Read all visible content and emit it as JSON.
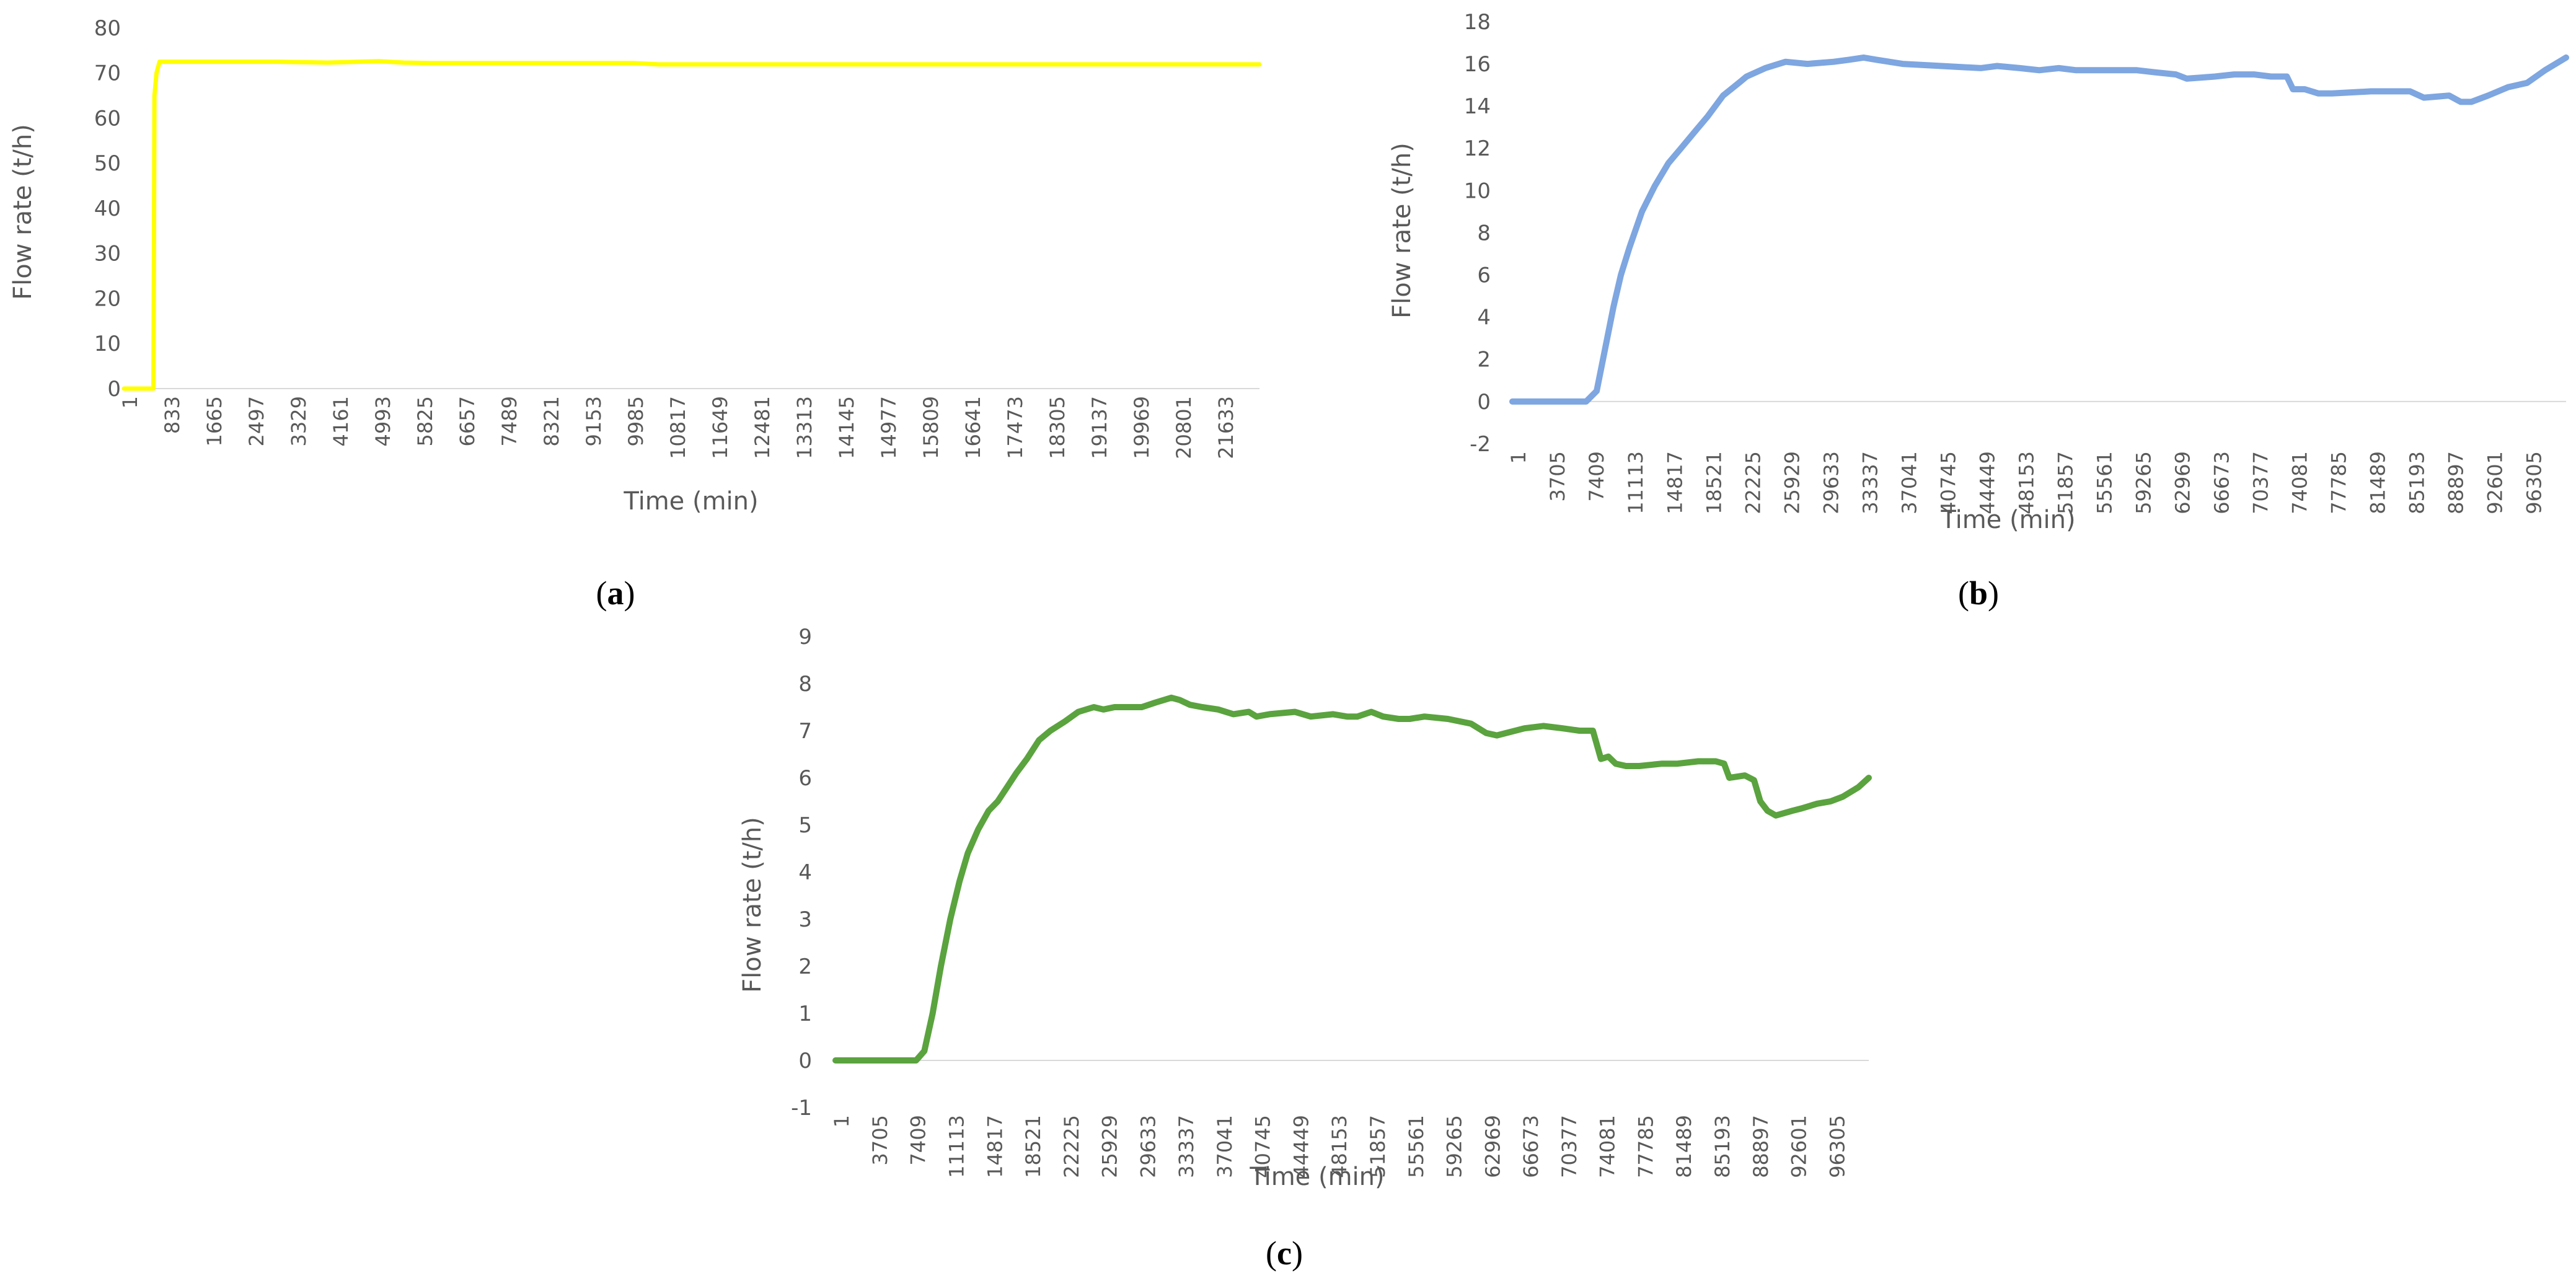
{
  "chart_data": [
    {
      "panel": "a",
      "panel_label_open": "(",
      "panel_label_letter": "a",
      "panel_label_close": ")",
      "type": "line",
      "xlabel": "Time (min)",
      "ylabel": "Flow rate (t/h)",
      "ylim": [
        0,
        80
      ],
      "yticks": [
        0,
        10,
        20,
        30,
        40,
        50,
        60,
        70,
        80
      ],
      "xlim": [
        1,
        22300
      ],
      "x_tick_labels": [
        "1",
        "833",
        "1665",
        "2497",
        "3329",
        "4161",
        "4993",
        "5825",
        "6657",
        "7489",
        "8321",
        "9153",
        "9985",
        "10817",
        "11649",
        "12481",
        "13313",
        "14145",
        "14977",
        "15809",
        "16641",
        "17473",
        "18305",
        "19137",
        "19969",
        "20801",
        "21633"
      ],
      "grid": false,
      "legend": "none",
      "color": "#FFFF00",
      "series": [
        {
          "x": [
            1,
            500,
            580,
            600,
            640,
            700,
            1000,
            2000,
            3000,
            4000,
            5000,
            5500,
            6000,
            8000,
            10000,
            10500,
            12000,
            15000,
            18000,
            21000,
            22300
          ],
          "y": [
            0,
            0,
            0,
            65,
            70,
            72.5,
            72.5,
            72.5,
            72.5,
            72.3,
            72.6,
            72.3,
            72.2,
            72.2,
            72.2,
            71.9,
            71.9,
            71.9,
            71.9,
            71.9,
            71.9
          ]
        }
      ]
    },
    {
      "panel": "b",
      "panel_label_open": "(",
      "panel_label_letter": "b",
      "panel_label_close": ")",
      "type": "line",
      "xlabel": "Time (min)",
      "ylabel": "Flow rate (t/h)",
      "ylim": [
        -2,
        18
      ],
      "yticks": [
        -2,
        0,
        2,
        4,
        6,
        8,
        10,
        12,
        14,
        16,
        18
      ],
      "xlim": [
        1,
        100000
      ],
      "x_tick_labels": [
        "1",
        "3705",
        "7409",
        "11113",
        "14817",
        "18521",
        "22225",
        "25929",
        "29633",
        "33337",
        "37041",
        "40745",
        "44449",
        "48153",
        "51857",
        "55561",
        "59265",
        "62969",
        "66673",
        "70377",
        "74081",
        "77785",
        "81489",
        "85193",
        "88897",
        "92601",
        "96305"
      ],
      "grid": false,
      "legend": "none",
      "color": "#7EA6E0",
      "series": [
        {
          "x": [
            1,
            1800,
            3500,
            7000,
            8000,
            8800,
            9600,
            10300,
            11113,
            12300,
            13500,
            14817,
            16000,
            17500,
            18521,
            20000,
            21500,
            22225,
            24000,
            25929,
            28000,
            30500,
            32000,
            33337,
            34500,
            37041,
            40745,
            44449,
            46000,
            48153,
            50000,
            51857,
            53500,
            55561,
            59265,
            61000,
            62969,
            64000,
            66673,
            68500,
            70377,
            72000,
            73500,
            74081,
            75200,
            76500,
            77785,
            81489,
            85193,
            86500,
            88897,
            90000,
            91000,
            92601,
            94500,
            96305,
            98000,
            100000
          ],
          "y": [
            0,
            0,
            0,
            0,
            0.5,
            2.5,
            4.5,
            6.0,
            7.3,
            9.0,
            10.2,
            11.3,
            12.0,
            12.9,
            13.5,
            14.5,
            15.1,
            15.4,
            15.8,
            16.1,
            16.0,
            16.1,
            16.2,
            16.3,
            16.2,
            16.0,
            15.9,
            15.8,
            15.9,
            15.8,
            15.7,
            15.8,
            15.7,
            15.7,
            15.7,
            15.6,
            15.5,
            15.3,
            15.4,
            15.5,
            15.5,
            15.4,
            15.4,
            14.8,
            14.8,
            14.6,
            14.6,
            14.7,
            14.7,
            14.4,
            14.5,
            14.2,
            14.2,
            14.5,
            14.9,
            15.1,
            15.7,
            16.3
          ]
        }
      ]
    },
    {
      "panel": "c",
      "panel_label_open": "(",
      "panel_label_letter": "c",
      "panel_label_close": ")",
      "type": "line",
      "xlabel": "Time (min)",
      "ylabel": "Flow rate (t/h)",
      "ylim": [
        -1,
        9
      ],
      "yticks": [
        -1,
        0,
        1,
        2,
        3,
        4,
        5,
        6,
        7,
        8,
        9
      ],
      "xlim": [
        1,
        100000
      ],
      "x_tick_labels": [
        "1",
        "3705",
        "7409",
        "11113",
        "14817",
        "18521",
        "22225",
        "25929",
        "29633",
        "33337",
        "37041",
        "40745",
        "44449",
        "48153",
        "51857",
        "55561",
        "59265",
        "62969",
        "66673",
        "70377",
        "74081",
        "77785",
        "81489",
        "85193",
        "88897",
        "92601",
        "96305"
      ],
      "grid": false,
      "legend": "none",
      "color": "#5AA33E",
      "series": [
        {
          "x": [
            1,
            3705,
            7000,
            7800,
            8600,
            9400,
            10200,
            11113,
            12000,
            12800,
            13800,
            14817,
            15700,
            16600,
            17500,
            18521,
            19700,
            20800,
            22225,
            23500,
            25000,
            25929,
            27000,
            29633,
            31000,
            32500,
            33337,
            34300,
            35500,
            37041,
            38500,
            40000,
            40745,
            42000,
            44449,
            46000,
            48153,
            49500,
            50500,
            51857,
            53000,
            54500,
            55561,
            57000,
            59265,
            61500,
            62969,
            64000,
            66673,
            68500,
            70377,
            72000,
            73300,
            74081,
            74800,
            75500,
            76500,
            77785,
            80000,
            81489,
            83500,
            85193,
            86000,
            86500,
            88000,
            88897,
            89500,
            90200,
            91000,
            92601,
            93500,
            95000,
            96305,
            97500,
            99000,
            100000
          ],
          "y": [
            0,
            0,
            0,
            0,
            0.2,
            1.0,
            2.0,
            3.0,
            3.8,
            4.4,
            4.9,
            5.3,
            5.5,
            5.8,
            6.1,
            6.4,
            6.8,
            7.0,
            7.2,
            7.4,
            7.5,
            7.45,
            7.5,
            7.5,
            7.6,
            7.7,
            7.65,
            7.55,
            7.5,
            7.45,
            7.35,
            7.4,
            7.3,
            7.35,
            7.4,
            7.3,
            7.35,
            7.3,
            7.3,
            7.4,
            7.3,
            7.25,
            7.25,
            7.3,
            7.25,
            7.15,
            6.95,
            6.9,
            7.05,
            7.1,
            7.05,
            7.0,
            7.0,
            6.4,
            6.45,
            6.3,
            6.25,
            6.25,
            6.3,
            6.3,
            6.35,
            6.35,
            6.3,
            6.0,
            6.05,
            5.95,
            5.5,
            5.3,
            5.2,
            5.3,
            5.35,
            5.45,
            5.5,
            5.6,
            5.8,
            6.0
          ]
        }
      ]
    }
  ]
}
